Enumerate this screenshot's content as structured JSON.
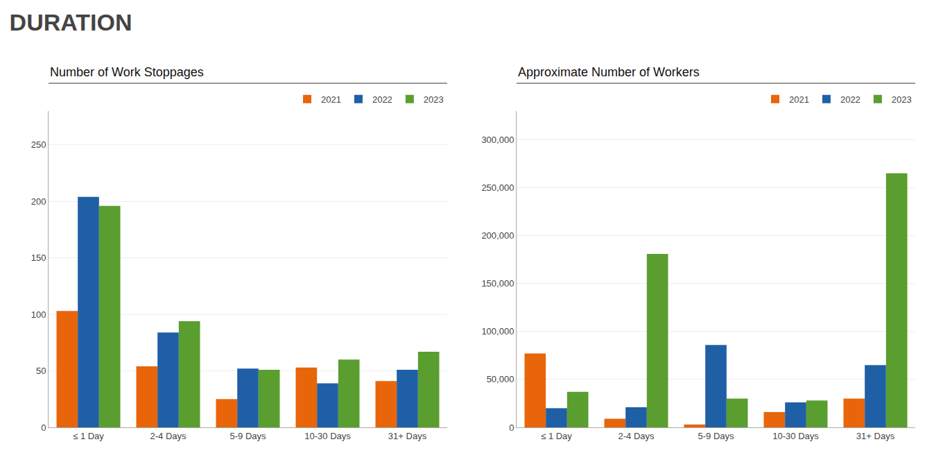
{
  "title": "DURATION",
  "chart_data": [
    {
      "type": "bar",
      "title": "Number of Work Stoppages",
      "categories": [
        "≤ 1 Day",
        "2-4 Days",
        "5-9 Days",
        "10-30 Days",
        "31+ Days"
      ],
      "series": [
        {
          "name": "2021",
          "color": "#e8650a",
          "values": [
            103,
            54,
            25,
            53,
            41
          ]
        },
        {
          "name": "2022",
          "color": "#1f5fa6",
          "values": [
            204,
            84,
            52,
            39,
            51
          ]
        },
        {
          "name": "2023",
          "color": "#5a9e2f",
          "values": [
            196,
            94,
            51,
            60,
            67
          ]
        }
      ],
      "ylim": [
        0,
        280
      ],
      "yticks": [
        0,
        50,
        100,
        150,
        200,
        250
      ],
      "grid": true,
      "legend": "top"
    },
    {
      "type": "bar",
      "title": "Approximate Number of Workers",
      "categories": [
        "≤ 1 Day",
        "2-4 Days",
        "5-9 Days",
        "10-30 Days",
        "31+ Days"
      ],
      "series": [
        {
          "name": "2021",
          "color": "#e8650a",
          "values": [
            77000,
            9000,
            3000,
            16000,
            30000
          ]
        },
        {
          "name": "2022",
          "color": "#1f5fa6",
          "values": [
            20000,
            21000,
            86000,
            26000,
            65000
          ]
        },
        {
          "name": "2023",
          "color": "#5a9e2f",
          "values": [
            37000,
            181000,
            30000,
            28000,
            265000
          ]
        }
      ],
      "ylim": [
        0,
        330000
      ],
      "yticks": [
        0,
        {
          "value": 50000,
          "label": "50,000"
        },
        {
          "value": 100000,
          "label": "100,000"
        },
        {
          "value": 150000,
          "label": "150,000"
        },
        {
          "value": 200000,
          "label": "200,000"
        },
        {
          "value": 250000,
          "label": "250,000"
        },
        {
          "value": 300000,
          "label": "300,000"
        }
      ],
      "grid": true,
      "legend": "top"
    }
  ]
}
